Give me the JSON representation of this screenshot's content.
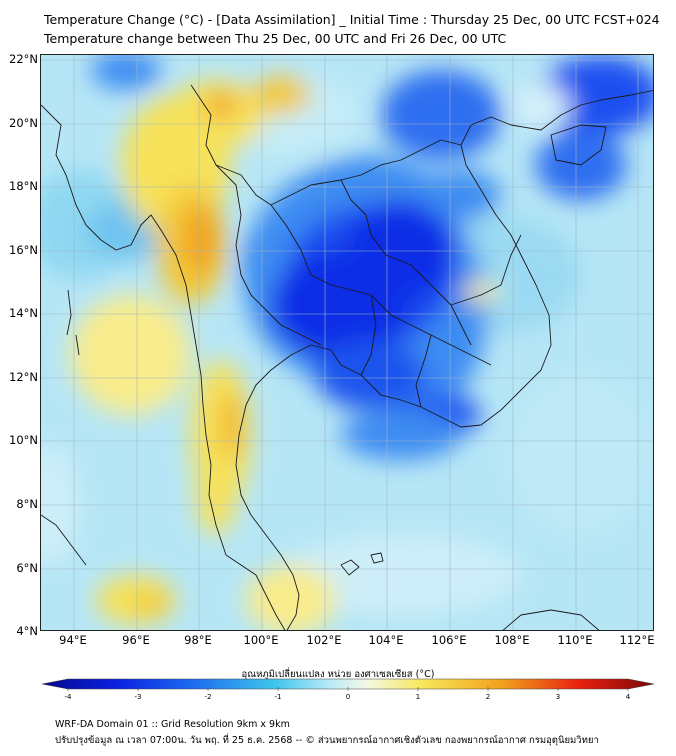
{
  "title": {
    "line1": "Temperature Change (°C) - [Data Assimilation] _ Initial Time : Thursday 25 Dec, 00 UTC FCST+024",
    "line2": "Temperature change between Thu 25 Dec, 00 UTC and Fri 26 Dec, 00 UTC"
  },
  "map": {
    "lat_labels": [
      "22°N",
      "20°N",
      "18°N",
      "16°N",
      "14°N",
      "12°N",
      "10°N",
      "8°N",
      "6°N",
      "4°N"
    ],
    "lon_labels": [
      "94°E",
      "96°E",
      "98°E",
      "100°E",
      "102°E",
      "104°E",
      "106°E",
      "108°E",
      "110°E",
      "112°E"
    ],
    "colors": {
      "background_field": "#b6e6f6",
      "strong_cooling": "#0a2ee6",
      "moderate_cooling": "#3c8cf0",
      "warming": "#f7e25a",
      "strong_warming": "#f2a21d",
      "borders": "#1a1a1a",
      "gridlines": "#9fb6c6"
    }
  },
  "colorbar": {
    "title": "อุณหภูมิเปลี่ยนแปลง หน่วย องศาเซลเซียส (°C)",
    "ticks": [
      "-4",
      "-3",
      "-2",
      "-1",
      "0",
      "1",
      "2",
      "3",
      "4"
    ],
    "range": [
      -4,
      4
    ]
  },
  "footer": {
    "line1": "WRF-DA Domain 01 :: Grid Resolution 9km x 9km",
    "line2": "ปรับปรุงข้อมูล ณ เวลา 07:00น. วัน พฤ. ที่ 25 ธ.ค. 2568 -- © ส่วนพยากรณ์อากาศเชิงตัวเลข กองพยากรณ์อากาศ กรมอุตุนิยมวิทยา"
  }
}
